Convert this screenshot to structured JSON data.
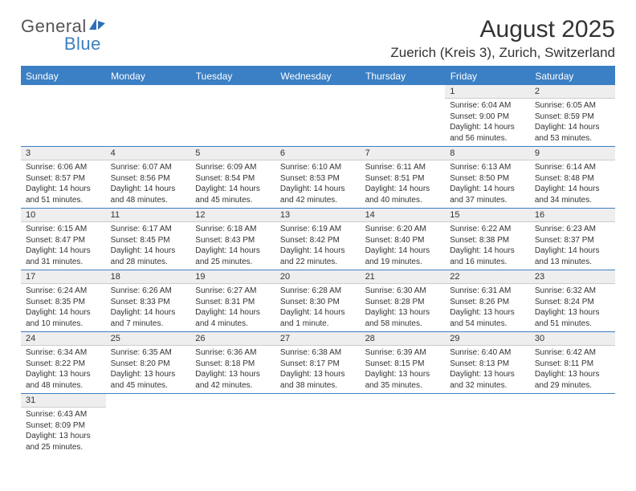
{
  "brand": {
    "part1": "General",
    "part2": "Blue"
  },
  "title": {
    "month": "August 2025",
    "location": "Zuerich (Kreis 3), Zurich, Switzerland"
  },
  "weekdays": [
    "Sunday",
    "Monday",
    "Tuesday",
    "Wednesday",
    "Thursday",
    "Friday",
    "Saturday"
  ],
  "colors": {
    "accent": "#3b7fc4",
    "header_bg": "#3b7fc4",
    "daynum_bg": "#eeeeee"
  },
  "weeks": [
    [
      null,
      null,
      null,
      null,
      null,
      {
        "n": "1",
        "sr": "Sunrise: 6:04 AM",
        "ss": "Sunset: 9:00 PM",
        "d1": "Daylight: 14 hours",
        "d2": "and 56 minutes."
      },
      {
        "n": "2",
        "sr": "Sunrise: 6:05 AM",
        "ss": "Sunset: 8:59 PM",
        "d1": "Daylight: 14 hours",
        "d2": "and 53 minutes."
      }
    ],
    [
      {
        "n": "3",
        "sr": "Sunrise: 6:06 AM",
        "ss": "Sunset: 8:57 PM",
        "d1": "Daylight: 14 hours",
        "d2": "and 51 minutes."
      },
      {
        "n": "4",
        "sr": "Sunrise: 6:07 AM",
        "ss": "Sunset: 8:56 PM",
        "d1": "Daylight: 14 hours",
        "d2": "and 48 minutes."
      },
      {
        "n": "5",
        "sr": "Sunrise: 6:09 AM",
        "ss": "Sunset: 8:54 PM",
        "d1": "Daylight: 14 hours",
        "d2": "and 45 minutes."
      },
      {
        "n": "6",
        "sr": "Sunrise: 6:10 AM",
        "ss": "Sunset: 8:53 PM",
        "d1": "Daylight: 14 hours",
        "d2": "and 42 minutes."
      },
      {
        "n": "7",
        "sr": "Sunrise: 6:11 AM",
        "ss": "Sunset: 8:51 PM",
        "d1": "Daylight: 14 hours",
        "d2": "and 40 minutes."
      },
      {
        "n": "8",
        "sr": "Sunrise: 6:13 AM",
        "ss": "Sunset: 8:50 PM",
        "d1": "Daylight: 14 hours",
        "d2": "and 37 minutes."
      },
      {
        "n": "9",
        "sr": "Sunrise: 6:14 AM",
        "ss": "Sunset: 8:48 PM",
        "d1": "Daylight: 14 hours",
        "d2": "and 34 minutes."
      }
    ],
    [
      {
        "n": "10",
        "sr": "Sunrise: 6:15 AM",
        "ss": "Sunset: 8:47 PM",
        "d1": "Daylight: 14 hours",
        "d2": "and 31 minutes."
      },
      {
        "n": "11",
        "sr": "Sunrise: 6:17 AM",
        "ss": "Sunset: 8:45 PM",
        "d1": "Daylight: 14 hours",
        "d2": "and 28 minutes."
      },
      {
        "n": "12",
        "sr": "Sunrise: 6:18 AM",
        "ss": "Sunset: 8:43 PM",
        "d1": "Daylight: 14 hours",
        "d2": "and 25 minutes."
      },
      {
        "n": "13",
        "sr": "Sunrise: 6:19 AM",
        "ss": "Sunset: 8:42 PM",
        "d1": "Daylight: 14 hours",
        "d2": "and 22 minutes."
      },
      {
        "n": "14",
        "sr": "Sunrise: 6:20 AM",
        "ss": "Sunset: 8:40 PM",
        "d1": "Daylight: 14 hours",
        "d2": "and 19 minutes."
      },
      {
        "n": "15",
        "sr": "Sunrise: 6:22 AM",
        "ss": "Sunset: 8:38 PM",
        "d1": "Daylight: 14 hours",
        "d2": "and 16 minutes."
      },
      {
        "n": "16",
        "sr": "Sunrise: 6:23 AM",
        "ss": "Sunset: 8:37 PM",
        "d1": "Daylight: 14 hours",
        "d2": "and 13 minutes."
      }
    ],
    [
      {
        "n": "17",
        "sr": "Sunrise: 6:24 AM",
        "ss": "Sunset: 8:35 PM",
        "d1": "Daylight: 14 hours",
        "d2": "and 10 minutes."
      },
      {
        "n": "18",
        "sr": "Sunrise: 6:26 AM",
        "ss": "Sunset: 8:33 PM",
        "d1": "Daylight: 14 hours",
        "d2": "and 7 minutes."
      },
      {
        "n": "19",
        "sr": "Sunrise: 6:27 AM",
        "ss": "Sunset: 8:31 PM",
        "d1": "Daylight: 14 hours",
        "d2": "and 4 minutes."
      },
      {
        "n": "20",
        "sr": "Sunrise: 6:28 AM",
        "ss": "Sunset: 8:30 PM",
        "d1": "Daylight: 14 hours",
        "d2": "and 1 minute."
      },
      {
        "n": "21",
        "sr": "Sunrise: 6:30 AM",
        "ss": "Sunset: 8:28 PM",
        "d1": "Daylight: 13 hours",
        "d2": "and 58 minutes."
      },
      {
        "n": "22",
        "sr": "Sunrise: 6:31 AM",
        "ss": "Sunset: 8:26 PM",
        "d1": "Daylight: 13 hours",
        "d2": "and 54 minutes."
      },
      {
        "n": "23",
        "sr": "Sunrise: 6:32 AM",
        "ss": "Sunset: 8:24 PM",
        "d1": "Daylight: 13 hours",
        "d2": "and 51 minutes."
      }
    ],
    [
      {
        "n": "24",
        "sr": "Sunrise: 6:34 AM",
        "ss": "Sunset: 8:22 PM",
        "d1": "Daylight: 13 hours",
        "d2": "and 48 minutes."
      },
      {
        "n": "25",
        "sr": "Sunrise: 6:35 AM",
        "ss": "Sunset: 8:20 PM",
        "d1": "Daylight: 13 hours",
        "d2": "and 45 minutes."
      },
      {
        "n": "26",
        "sr": "Sunrise: 6:36 AM",
        "ss": "Sunset: 8:18 PM",
        "d1": "Daylight: 13 hours",
        "d2": "and 42 minutes."
      },
      {
        "n": "27",
        "sr": "Sunrise: 6:38 AM",
        "ss": "Sunset: 8:17 PM",
        "d1": "Daylight: 13 hours",
        "d2": "and 38 minutes."
      },
      {
        "n": "28",
        "sr": "Sunrise: 6:39 AM",
        "ss": "Sunset: 8:15 PM",
        "d1": "Daylight: 13 hours",
        "d2": "and 35 minutes."
      },
      {
        "n": "29",
        "sr": "Sunrise: 6:40 AM",
        "ss": "Sunset: 8:13 PM",
        "d1": "Daylight: 13 hours",
        "d2": "and 32 minutes."
      },
      {
        "n": "30",
        "sr": "Sunrise: 6:42 AM",
        "ss": "Sunset: 8:11 PM",
        "d1": "Daylight: 13 hours",
        "d2": "and 29 minutes."
      }
    ],
    [
      {
        "n": "31",
        "sr": "Sunrise: 6:43 AM",
        "ss": "Sunset: 8:09 PM",
        "d1": "Daylight: 13 hours",
        "d2": "and 25 minutes."
      },
      null,
      null,
      null,
      null,
      null,
      null
    ]
  ]
}
